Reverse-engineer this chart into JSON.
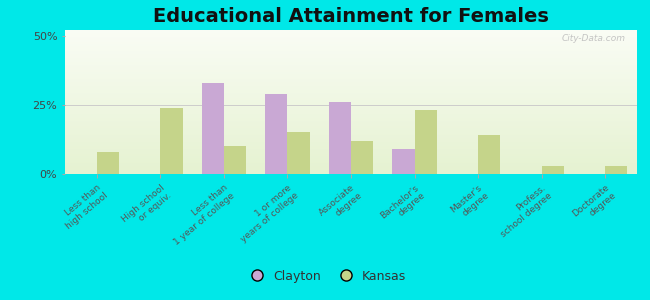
{
  "title": "Educational Attainment for Females",
  "categories": [
    "Less than\nhigh school",
    "High school\nor equiv.",
    "Less than\n1 year of college",
    "1 or more\nyears of college",
    "Associate\ndegree",
    "Bachelor's\ndegree",
    "Master's\ndegree",
    "Profess.\nschool degree",
    "Doctorate\ndegree"
  ],
  "clayton_values": [
    0.0,
    0.0,
    33.0,
    29.0,
    26.0,
    9.0,
    0.0,
    0.0,
    0.0
  ],
  "kansas_values": [
    8.0,
    24.0,
    10.0,
    15.0,
    12.0,
    23.0,
    14.0,
    3.0,
    3.0
  ],
  "clayton_color": "#c9a8d4",
  "kansas_color": "#c5d48a",
  "outer_background": "#00e8e8",
  "yticks": [
    0,
    25,
    50
  ],
  "ylim": [
    0,
    52
  ],
  "bar_width": 0.35,
  "title_fontsize": 14,
  "tick_fontsize": 6.5,
  "legend_fontsize": 9,
  "watermark": "City-Data.com"
}
